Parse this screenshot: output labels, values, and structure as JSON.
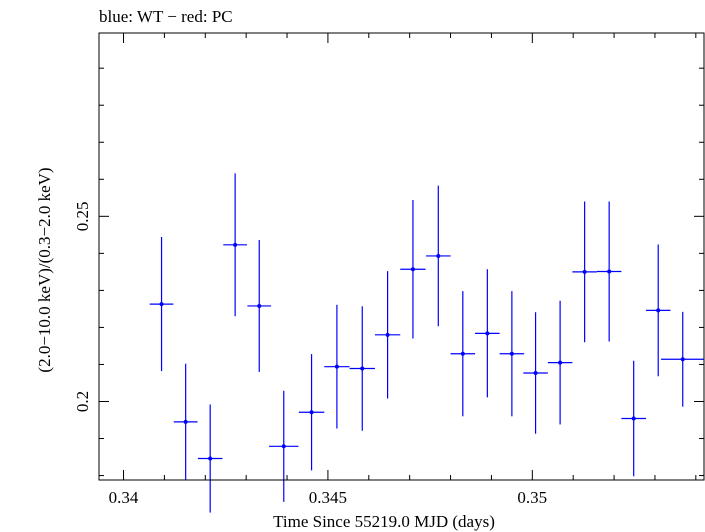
{
  "chart_data": {
    "type": "scatter",
    "title": "blue: WT − red: PC",
    "xlabel": "Time Since 55219.0 MJD (days)",
    "ylabel": "(2.0−10.0 keV)/(0.3−2.0 keV)",
    "xlim": [
      0.3394,
      0.3542
    ],
    "ylim": [
      0.1788,
      0.2995
    ],
    "x_ticks": [
      {
        "value": 0.34,
        "label": "0.34"
      },
      {
        "value": 0.345,
        "label": "0.345"
      },
      {
        "value": 0.35,
        "label": "0.35"
      }
    ],
    "y_ticks": [
      {
        "value": 0.2,
        "label": "0.2"
      },
      {
        "value": 0.25,
        "label": "0.25"
      }
    ],
    "grid": false,
    "series": [
      {
        "name": "WT",
        "color": "#0000ff",
        "points": [
          {
            "x": 0.34093,
            "xerr": 0.00029,
            "y": 0.2263,
            "yerr": 0.0181
          },
          {
            "x": 0.34152,
            "xerr": 0.00029,
            "y": 0.1945,
            "yerr": 0.0157
          },
          {
            "x": 0.34212,
            "xerr": 0.0003,
            "y": 0.1846,
            "yerr": 0.0146
          },
          {
            "x": 0.34273,
            "xerr": 0.00029,
            "y": 0.2423,
            "yerr": 0.0193
          },
          {
            "x": 0.34332,
            "xerr": 0.00029,
            "y": 0.2258,
            "yerr": 0.0178
          },
          {
            "x": 0.34392,
            "xerr": 0.00036,
            "y": 0.1879,
            "yerr": 0.015
          },
          {
            "x": 0.3446,
            "xerr": 0.00031,
            "y": 0.1971,
            "yerr": 0.0157
          },
          {
            "x": 0.34522,
            "xerr": 0.00031,
            "y": 0.2094,
            "yerr": 0.0167
          },
          {
            "x": 0.34584,
            "xerr": 0.00031,
            "y": 0.2089,
            "yerr": 0.0168
          },
          {
            "x": 0.34646,
            "xerr": 0.00031,
            "y": 0.218,
            "yerr": 0.0172
          },
          {
            "x": 0.34708,
            "xerr": 0.00031,
            "y": 0.2357,
            "yerr": 0.0187
          },
          {
            "x": 0.3477,
            "xerr": 0.0003,
            "y": 0.2393,
            "yerr": 0.019
          },
          {
            "x": 0.3483,
            "xerr": 0.0003,
            "y": 0.2129,
            "yerr": 0.0169
          },
          {
            "x": 0.3489,
            "xerr": 0.0003,
            "y": 0.2184,
            "yerr": 0.0173
          },
          {
            "x": 0.3495,
            "xerr": 0.0003,
            "y": 0.2129,
            "yerr": 0.0169
          },
          {
            "x": 0.35008,
            "xerr": 0.0003,
            "y": 0.2077,
            "yerr": 0.0164
          },
          {
            "x": 0.35068,
            "xerr": 0.0003,
            "y": 0.2105,
            "yerr": 0.0167
          },
          {
            "x": 0.35128,
            "xerr": 0.0003,
            "y": 0.235,
            "yerr": 0.019
          },
          {
            "x": 0.35188,
            "xerr": 0.0003,
            "y": 0.2351,
            "yerr": 0.0189
          },
          {
            "x": 0.35248,
            "xerr": 0.0003,
            "y": 0.1954,
            "yerr": 0.0156
          },
          {
            "x": 0.35308,
            "xerr": 0.0003,
            "y": 0.2246,
            "yerr": 0.0178
          },
          {
            "x": 0.35368,
            "xerr": 0.00053,
            "y": 0.2114,
            "yerr": 0.0128
          }
        ]
      }
    ]
  }
}
